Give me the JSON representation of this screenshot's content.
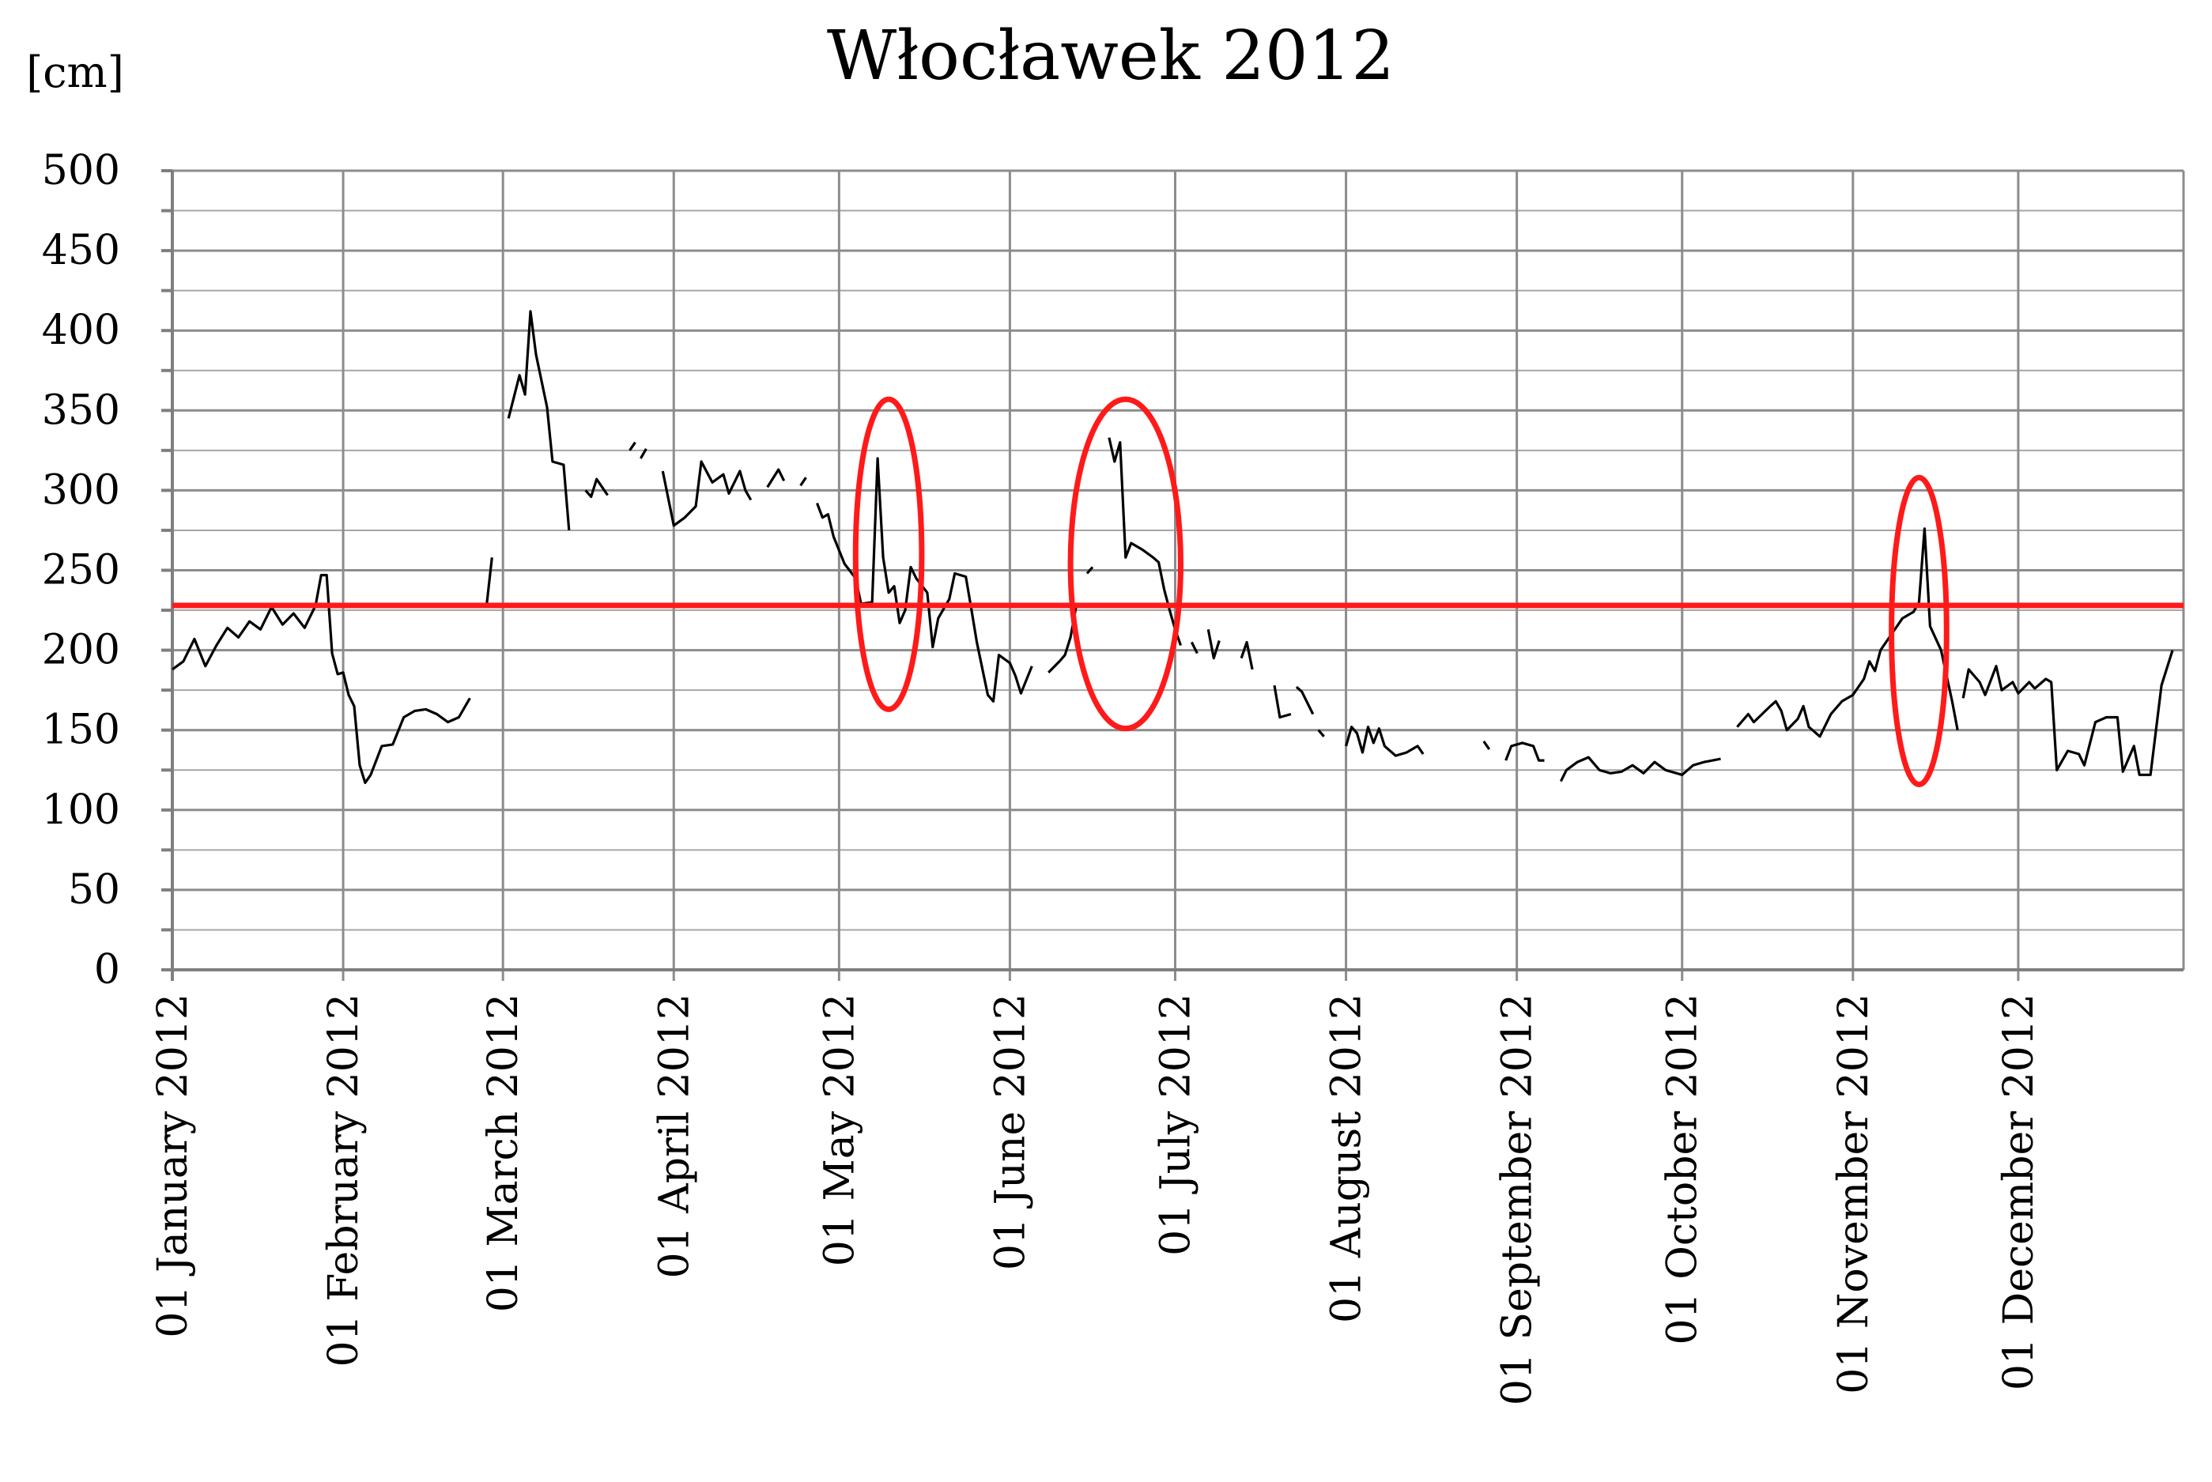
{
  "chart_data": {
    "type": "line",
    "title": "Włocławek 2012",
    "unit_label": "[cm]",
    "xlabel": "",
    "ylabel": "",
    "ylim": [
      0,
      500
    ],
    "yticks": [
      0,
      50,
      100,
      150,
      200,
      250,
      300,
      350,
      400,
      450,
      500
    ],
    "xlim": [
      "2012-01-01",
      "2012-12-31"
    ],
    "xticks": [
      {
        "date": "2012-01-01",
        "label": "01 January 2012"
      },
      {
        "date": "2012-02-01",
        "label": "01 February 2012"
      },
      {
        "date": "2012-03-01",
        "label": "01 March 2012"
      },
      {
        "date": "2012-04-01",
        "label": "01 April 2012"
      },
      {
        "date": "2012-05-01",
        "label": "01 May 2012"
      },
      {
        "date": "2012-06-01",
        "label": "01 June 2012"
      },
      {
        "date": "2012-07-01",
        "label": "01 July 2012"
      },
      {
        "date": "2012-08-01",
        "label": "01 August 2012"
      },
      {
        "date": "2012-09-01",
        "label": "01 September 2012"
      },
      {
        "date": "2012-10-01",
        "label": "01 October 2012"
      },
      {
        "date": "2012-11-01",
        "label": "01 November 2012"
      },
      {
        "date": "2012-12-01",
        "label": "01 December 2012"
      }
    ],
    "grid": true,
    "series": [
      {
        "color": "#000000",
        "segments": [
          [
            [
              "2012-01-01",
              188
            ],
            [
              "2012-01-03",
              193
            ],
            [
              "2012-01-05",
              207
            ],
            [
              "2012-01-07",
              190
            ],
            [
              "2012-01-09",
              203
            ],
            [
              "2012-01-11",
              214
            ],
            [
              "2012-01-13",
              208
            ],
            [
              "2012-01-15",
              218
            ],
            [
              "2012-01-17",
              213
            ],
            [
              "2012-01-19",
              227
            ],
            [
              "2012-01-21",
              216
            ],
            [
              "2012-01-23",
              223
            ],
            [
              "2012-01-25",
              214
            ],
            [
              "2012-01-27",
              228
            ],
            [
              "2012-01-28",
              247
            ],
            [
              "2012-01-29",
              247
            ],
            [
              "2012-01-30",
              198
            ],
            [
              "2012-01-31",
              185
            ],
            [
              "2012-02-01",
              186
            ],
            [
              "2012-02-02",
              172
            ],
            [
              "2012-02-03",
              165
            ],
            [
              "2012-02-04",
              128
            ],
            [
              "2012-02-05",
              117
            ],
            [
              "2012-02-06",
              122
            ],
            [
              "2012-02-08",
              140
            ],
            [
              "2012-02-10",
              141
            ],
            [
              "2012-02-12",
              158
            ],
            [
              "2012-02-14",
              162
            ],
            [
              "2012-02-16",
              163
            ],
            [
              "2012-02-18",
              160
            ],
            [
              "2012-02-20",
              155
            ],
            [
              "2012-02-22",
              158
            ],
            [
              "2012-02-24",
              170
            ]
          ],
          [
            [
              "2012-02-27",
              227
            ],
            [
              "2012-02-28",
              258
            ]
          ],
          [
            [
              "2012-03-02",
              345
            ],
            [
              "2012-03-04",
              372
            ],
            [
              "2012-03-05",
              360
            ],
            [
              "2012-03-06",
              412
            ],
            [
              "2012-03-07",
              385
            ],
            [
              "2012-03-09",
              352
            ],
            [
              "2012-03-10",
              318
            ],
            [
              "2012-03-12",
              316
            ],
            [
              "2012-03-13",
              275
            ]
          ],
          [
            [
              "2012-03-16",
              300
            ],
            [
              "2012-03-17",
              296
            ],
            [
              "2012-03-18",
              307
            ],
            [
              "2012-03-20",
              297
            ]
          ],
          [
            [
              "2012-03-24",
              325
            ],
            [
              "2012-03-25",
              330
            ]
          ],
          [
            [
              "2012-03-26",
              320
            ],
            [
              "2012-03-27",
              326
            ]
          ],
          [
            [
              "2012-03-30",
              312
            ],
            [
              "2012-04-01",
              278
            ],
            [
              "2012-04-03",
              283
            ],
            [
              "2012-04-05",
              290
            ],
            [
              "2012-04-06",
              318
            ],
            [
              "2012-04-08",
              305
            ],
            [
              "2012-04-10",
              310
            ],
            [
              "2012-04-11",
              298
            ],
            [
              "2012-04-13",
              312
            ],
            [
              "2012-04-14",
              300
            ],
            [
              "2012-04-15",
              294
            ]
          ],
          [
            [
              "2012-04-18",
              302
            ],
            [
              "2012-04-20",
              313
            ],
            [
              "2012-04-21",
              306
            ]
          ],
          [
            [
              "2012-04-24",
              303
            ],
            [
              "2012-04-25",
              308
            ]
          ],
          [
            [
              "2012-04-27",
              292
            ],
            [
              "2012-04-28",
              283
            ],
            [
              "2012-04-29",
              285
            ],
            [
              "2012-04-30",
              271
            ],
            [
              "2012-05-02",
              254
            ],
            [
              "2012-05-04",
              245
            ],
            [
              "2012-05-05",
              229
            ],
            [
              "2012-05-07",
              230
            ],
            [
              "2012-05-08",
              320
            ],
            [
              "2012-05-09",
              258
            ],
            [
              "2012-05-10",
              236
            ],
            [
              "2012-05-11",
              240
            ],
            [
              "2012-05-12",
              217
            ],
            [
              "2012-05-13",
              225
            ],
            [
              "2012-05-14",
              252
            ],
            [
              "2012-05-15",
              245
            ],
            [
              "2012-05-17",
              236
            ],
            [
              "2012-05-18",
              202
            ],
            [
              "2012-05-19",
              220
            ],
            [
              "2012-05-21",
              232
            ],
            [
              "2012-05-22",
              248
            ],
            [
              "2012-05-24",
              246
            ],
            [
              "2012-05-25",
              226
            ],
            [
              "2012-05-26",
              205
            ],
            [
              "2012-05-28",
              172
            ],
            [
              "2012-05-29",
              168
            ],
            [
              "2012-05-30",
              197
            ],
            [
              "2012-06-01",
              192
            ],
            [
              "2012-06-02",
              184
            ],
            [
              "2012-06-03",
              173
            ],
            [
              "2012-06-05",
              190
            ]
          ],
          [
            [
              "2012-06-08",
              186
            ],
            [
              "2012-06-10",
              193
            ],
            [
              "2012-06-11",
              197
            ],
            [
              "2012-06-12",
              208
            ],
            [
              "2012-06-13",
              227
            ]
          ],
          [
            [
              "2012-06-15",
              248
            ],
            [
              "2012-06-16",
              252
            ]
          ],
          [
            [
              "2012-06-19",
              333
            ],
            [
              "2012-06-20",
              318
            ],
            [
              "2012-06-21",
              330
            ],
            [
              "2012-06-22",
              258
            ],
            [
              "2012-06-23",
              267
            ],
            [
              "2012-06-25",
              263
            ],
            [
              "2012-06-27",
              258
            ],
            [
              "2012-06-28",
              255
            ],
            [
              "2012-06-29",
              238
            ],
            [
              "2012-06-30",
              225
            ],
            [
              "2012-07-01",
              213
            ],
            [
              "2012-07-02",
              203
            ]
          ],
          [
            [
              "2012-07-04",
              205
            ],
            [
              "2012-07-05",
              198
            ]
          ],
          [
            [
              "2012-07-07",
              213
            ],
            [
              "2012-07-08",
              195
            ],
            [
              "2012-07-09",
              206
            ]
          ],
          [
            [
              "2012-07-13",
              195
            ],
            [
              "2012-07-14",
              205
            ],
            [
              "2012-07-15",
              188
            ]
          ],
          [
            [
              "2012-07-19",
              178
            ],
            [
              "2012-07-20",
              158
            ],
            [
              "2012-07-22",
              160
            ]
          ],
          [
            [
              "2012-07-23",
              177
            ],
            [
              "2012-07-24",
              174
            ],
            [
              "2012-07-26",
              160
            ]
          ],
          [
            [
              "2012-07-27",
              150
            ],
            [
              "2012-07-28",
              146
            ]
          ],
          [
            [
              "2012-08-01",
              140
            ],
            [
              "2012-08-02",
              152
            ],
            [
              "2012-08-03",
              148
            ],
            [
              "2012-08-04",
              136
            ],
            [
              "2012-08-05",
              152
            ],
            [
              "2012-08-06",
              142
            ],
            [
              "2012-08-07",
              151
            ],
            [
              "2012-08-08",
              140
            ],
            [
              "2012-08-10",
              134
            ],
            [
              "2012-08-12",
              136
            ],
            [
              "2012-08-14",
              140
            ],
            [
              "2012-08-15",
              135
            ]
          ],
          [
            [
              "2012-08-26",
              143
            ],
            [
              "2012-08-27",
              138
            ]
          ],
          [
            [
              "2012-08-30",
              131
            ],
            [
              "2012-08-31",
              140
            ],
            [
              "2012-09-02",
              142
            ],
            [
              "2012-09-04",
              140
            ],
            [
              "2012-09-05",
              131
            ],
            [
              "2012-09-06",
              131
            ]
          ],
          [
            [
              "2012-09-09",
              118
            ],
            [
              "2012-09-10",
              125
            ],
            [
              "2012-09-12",
              130
            ],
            [
              "2012-09-14",
              133
            ],
            [
              "2012-09-16",
              125
            ],
            [
              "2012-09-18",
              123
            ],
            [
              "2012-09-20",
              124
            ],
            [
              "2012-09-22",
              128
            ],
            [
              "2012-09-24",
              123
            ],
            [
              "2012-09-26",
              130
            ],
            [
              "2012-09-28",
              125
            ],
            [
              "2012-10-01",
              122
            ],
            [
              "2012-10-03",
              128
            ],
            [
              "2012-10-05",
              130
            ],
            [
              "2012-10-08",
              132
            ]
          ],
          [
            [
              "2012-10-11",
              152
            ],
            [
              "2012-10-13",
              160
            ],
            [
              "2012-10-14",
              155
            ],
            [
              "2012-10-17",
              165
            ],
            [
              "2012-10-18",
              168
            ],
            [
              "2012-10-19",
              162
            ],
            [
              "2012-10-20",
              150
            ],
            [
              "2012-10-22",
              157
            ],
            [
              "2012-10-23",
              165
            ],
            [
              "2012-10-24",
              152
            ],
            [
              "2012-10-26",
              146
            ],
            [
              "2012-10-28",
              160
            ],
            [
              "2012-10-30",
              168
            ],
            [
              "2012-11-01",
              172
            ],
            [
              "2012-11-03",
              182
            ],
            [
              "2012-11-04",
              193
            ],
            [
              "2012-11-05",
              187
            ],
            [
              "2012-11-06",
              200
            ],
            [
              "2012-11-08",
              210
            ],
            [
              "2012-11-10",
              220
            ],
            [
              "2012-11-12",
              224
            ],
            [
              "2012-11-13",
              230
            ],
            [
              "2012-11-14",
              276
            ],
            [
              "2012-11-15",
              215
            ],
            [
              "2012-11-17",
              200
            ],
            [
              "2012-11-19",
              168
            ],
            [
              "2012-11-20",
              150
            ]
          ],
          [
            [
              "2012-11-21",
              170
            ],
            [
              "2012-11-22",
              188
            ],
            [
              "2012-11-24",
              180
            ],
            [
              "2012-11-25",
              172
            ],
            [
              "2012-11-27",
              190
            ],
            [
              "2012-11-28",
              175
            ],
            [
              "2012-11-30",
              180
            ],
            [
              "2012-12-01",
              173
            ],
            [
              "2012-12-03",
              180
            ],
            [
              "2012-12-04",
              176
            ],
            [
              "2012-12-06",
              182
            ],
            [
              "2012-12-07",
              180
            ],
            [
              "2012-12-08",
              125
            ],
            [
              "2012-12-10",
              137
            ],
            [
              "2012-12-12",
              135
            ],
            [
              "2012-12-13",
              128
            ],
            [
              "2012-12-15",
              155
            ],
            [
              "2012-12-17",
              158
            ],
            [
              "2012-12-19",
              158
            ],
            [
              "2012-12-20",
              124
            ],
            [
              "2012-12-22",
              140
            ],
            [
              "2012-12-23",
              122
            ],
            [
              "2012-12-25",
              122
            ],
            [
              "2012-12-27",
              178
            ],
            [
              "2012-12-29",
              200
            ]
          ]
        ]
      }
    ],
    "threshold": {
      "value": 228,
      "color": "#ff1a1a"
    },
    "highlight_ellipses": [
      {
        "center_date": "2012-05-10",
        "center_value": 260,
        "half_width_days": 6,
        "half_height_value": 97,
        "color": "#ff1a1a"
      },
      {
        "center_date": "2012-06-22",
        "center_value": 254,
        "half_width_days": 10,
        "half_height_value": 103,
        "color": "#ff1a1a"
      },
      {
        "center_date": "2012-11-13",
        "center_value": 212,
        "half_width_days": 5,
        "half_height_value": 96,
        "color": "#ff1a1a"
      }
    ]
  }
}
